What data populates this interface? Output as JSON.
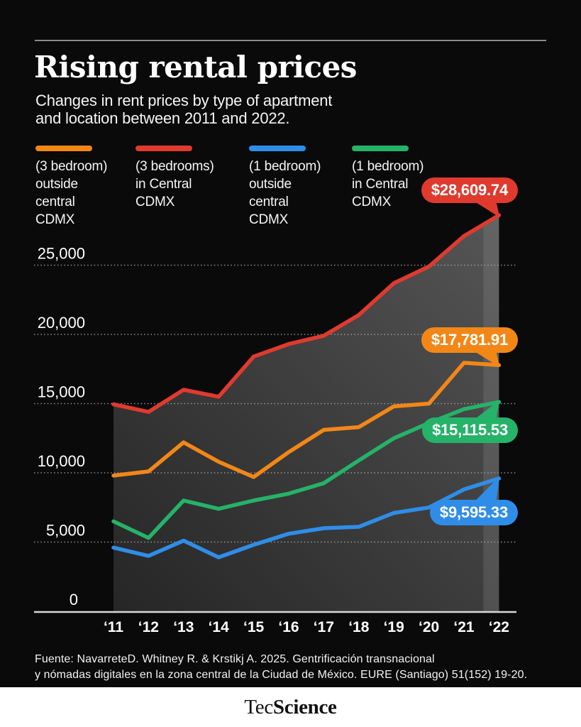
{
  "header": {
    "title": "Rising rental prices",
    "subtitle": "Changes in rent prices by type of apartment\nand location between 2011 and 2022."
  },
  "legend": {
    "items": [
      {
        "label": "(3 bedroom)\noutside\ncentral\nCDMX",
        "color": "#F28718"
      },
      {
        "label": "(3 bedrooms)\nin Central\nCDMX",
        "color": "#E03A2F"
      },
      {
        "label": "(1 bedroom)\noutside\ncentral\nCDMX",
        "color": "#2F8DE8"
      },
      {
        "label": "(1 bedroom)\nin Central\nCDMX",
        "color": "#25B269"
      }
    ]
  },
  "chart_data": {
    "type": "line",
    "title": "Rising rental prices",
    "xlabel": "",
    "ylabel": "",
    "x": [
      2011,
      2012,
      2013,
      2014,
      2015,
      2016,
      2017,
      2018,
      2019,
      2020,
      2021,
      2022
    ],
    "tick_labels": [
      "‘11",
      "‘12",
      "‘13",
      "‘14",
      "‘15",
      "‘16",
      "‘17",
      "‘18",
      "‘19",
      "‘20",
      "‘21",
      "‘22"
    ],
    "ylim": [
      0,
      28609.74
    ],
    "yticks": [
      {
        "v": 0,
        "label": "0"
      },
      {
        "v": 5000,
        "label": "5,000"
      },
      {
        "v": 10000,
        "label": "10,000"
      },
      {
        "v": 15000,
        "label": "15,000"
      },
      {
        "v": 20000,
        "label": "20,000"
      },
      {
        "v": 25000,
        "label": "25,000"
      }
    ],
    "grid": "dotted horizontal gridlines, dark area fill under top series",
    "legend_position": "top",
    "series": [
      {
        "name": "(3 bedrooms) in Central CDMX",
        "color": "#E03A2F",
        "badge": "above",
        "end_label": "$28,609.74",
        "values": [
          14950,
          14400,
          16000,
          15500,
          18400,
          19300,
          19900,
          21400,
          23700,
          24900,
          27100,
          28609.74
        ]
      },
      {
        "name": "(3 bedroom) outside central CDMX",
        "color": "#F28718",
        "badge": "above",
        "end_label": "$17,781.91",
        "values": [
          9800,
          10100,
          12200,
          10800,
          9700,
          11500,
          13100,
          13300,
          14800,
          15000,
          17950,
          17781.91
        ]
      },
      {
        "name": "(1 bedroom) in Central CDMX",
        "color": "#25B269",
        "badge": "below",
        "end_label": "$15,115.53",
        "values": [
          6500,
          5300,
          8000,
          7400,
          8000,
          8500,
          9250,
          10900,
          12500,
          13600,
          14600,
          15115.53
        ]
      },
      {
        "name": "(1 bedroom) outside central CDMX",
        "color": "#2F8DE8",
        "badge": "below",
        "end_label": "$9,595.33",
        "values": [
          4600,
          4000,
          5100,
          3900,
          4800,
          5600,
          6000,
          6100,
          7100,
          7500,
          8800,
          9595.33
        ]
      }
    ]
  },
  "source": {
    "text": "Fuente: NavarreteD. Whitney R. & Krstikj A. 2025. Gentrificación transnacional\ny nómadas digitales en la zona central de la Ciudad de México. EURE (Santiago) 51(152) 19-20."
  },
  "brand": {
    "prefix": "Tec",
    "suffix": "Science"
  }
}
